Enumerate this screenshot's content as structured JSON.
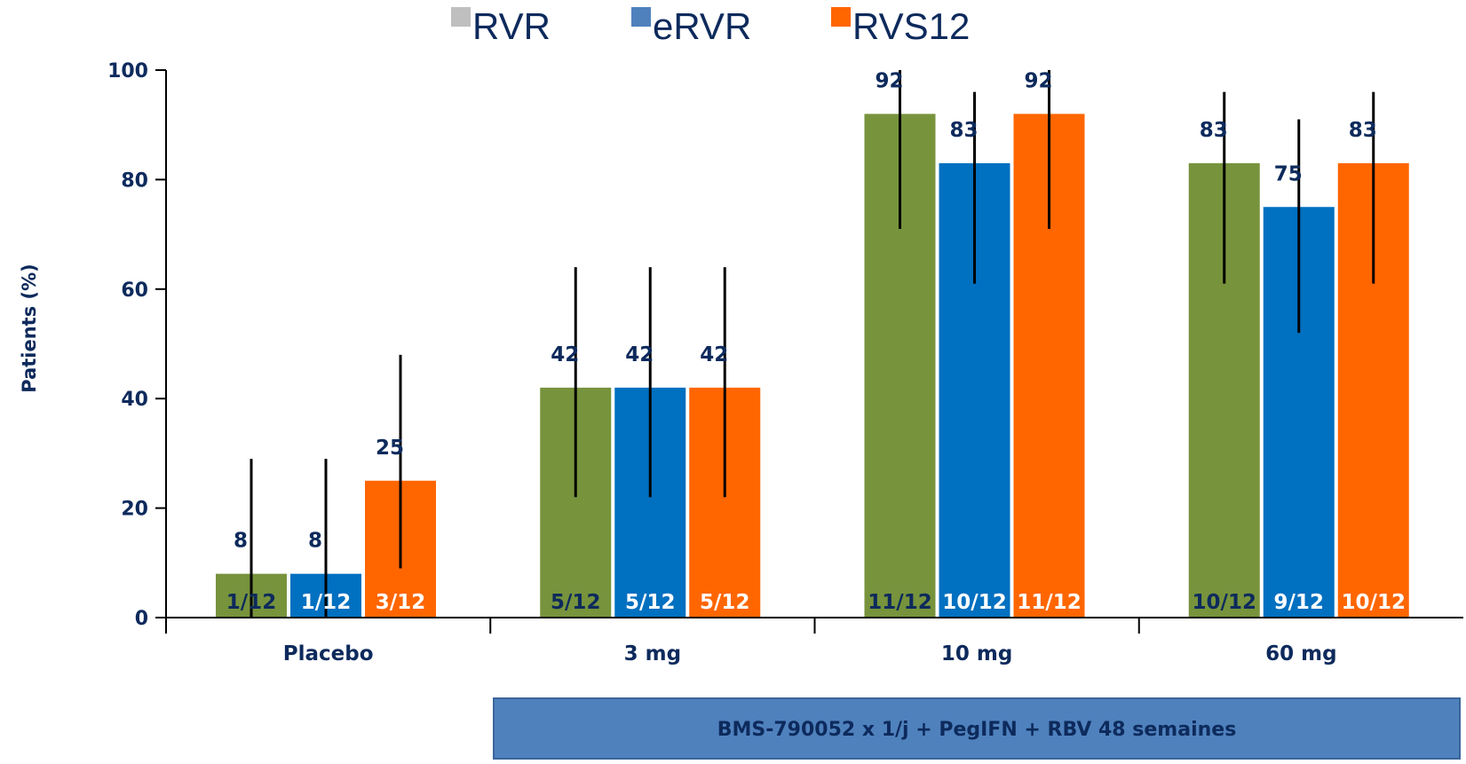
{
  "chart_data": {
    "type": "bar",
    "title": "",
    "xlabel": "",
    "ylabel": "Patients (%)",
    "ylim": [
      0,
      100
    ],
    "yticks": [
      0,
      20,
      40,
      60,
      80,
      100
    ],
    "grid": false,
    "legend_position": "top",
    "categories": [
      "Placebo",
      "3 mg",
      "10 mg",
      "60 mg"
    ],
    "series": [
      {
        "name": "RVR",
        "legend_color": "#bfbfbf",
        "bar_color": "#77933c",
        "values": [
          8,
          42,
          92,
          83
        ],
        "value_labels": [
          "8",
          "42",
          "92",
          "83"
        ],
        "ratios": [
          "1/12",
          "5/12",
          "11/12",
          "10/12"
        ],
        "error_low": [
          0,
          22,
          71,
          61
        ],
        "error_high": [
          29,
          64,
          100,
          96
        ]
      },
      {
        "name": "eRVR",
        "legend_color": "#4f81bd",
        "bar_color": "#0070c0",
        "values": [
          8,
          42,
          83,
          75
        ],
        "value_labels": [
          "8",
          "42",
          "83",
          "75"
        ],
        "ratios": [
          "1/12",
          "5/12",
          "10/12",
          "9/12"
        ],
        "error_low": [
          0,
          22,
          61,
          52
        ],
        "error_high": [
          29,
          64,
          96,
          91
        ]
      },
      {
        "name": "RVS12",
        "legend_color": "#ff6600",
        "bar_color": "#ff6600",
        "values": [
          25,
          42,
          92,
          83
        ],
        "value_labels": [
          "25",
          "42",
          "92",
          "83"
        ],
        "ratios": [
          "3/12",
          "5/12",
          "11/12",
          "10/12"
        ],
        "error_low": [
          9,
          22,
          71,
          61
        ],
        "error_high": [
          48,
          64,
          100,
          96
        ]
      }
    ],
    "annotation_box": {
      "text": "BMS-790052 x 1/j + PegIFN + RBV 48 semaines",
      "spans_categories": [
        "3 mg",
        "10 mg",
        "60 mg"
      ],
      "fill": "#4f81bd"
    }
  }
}
